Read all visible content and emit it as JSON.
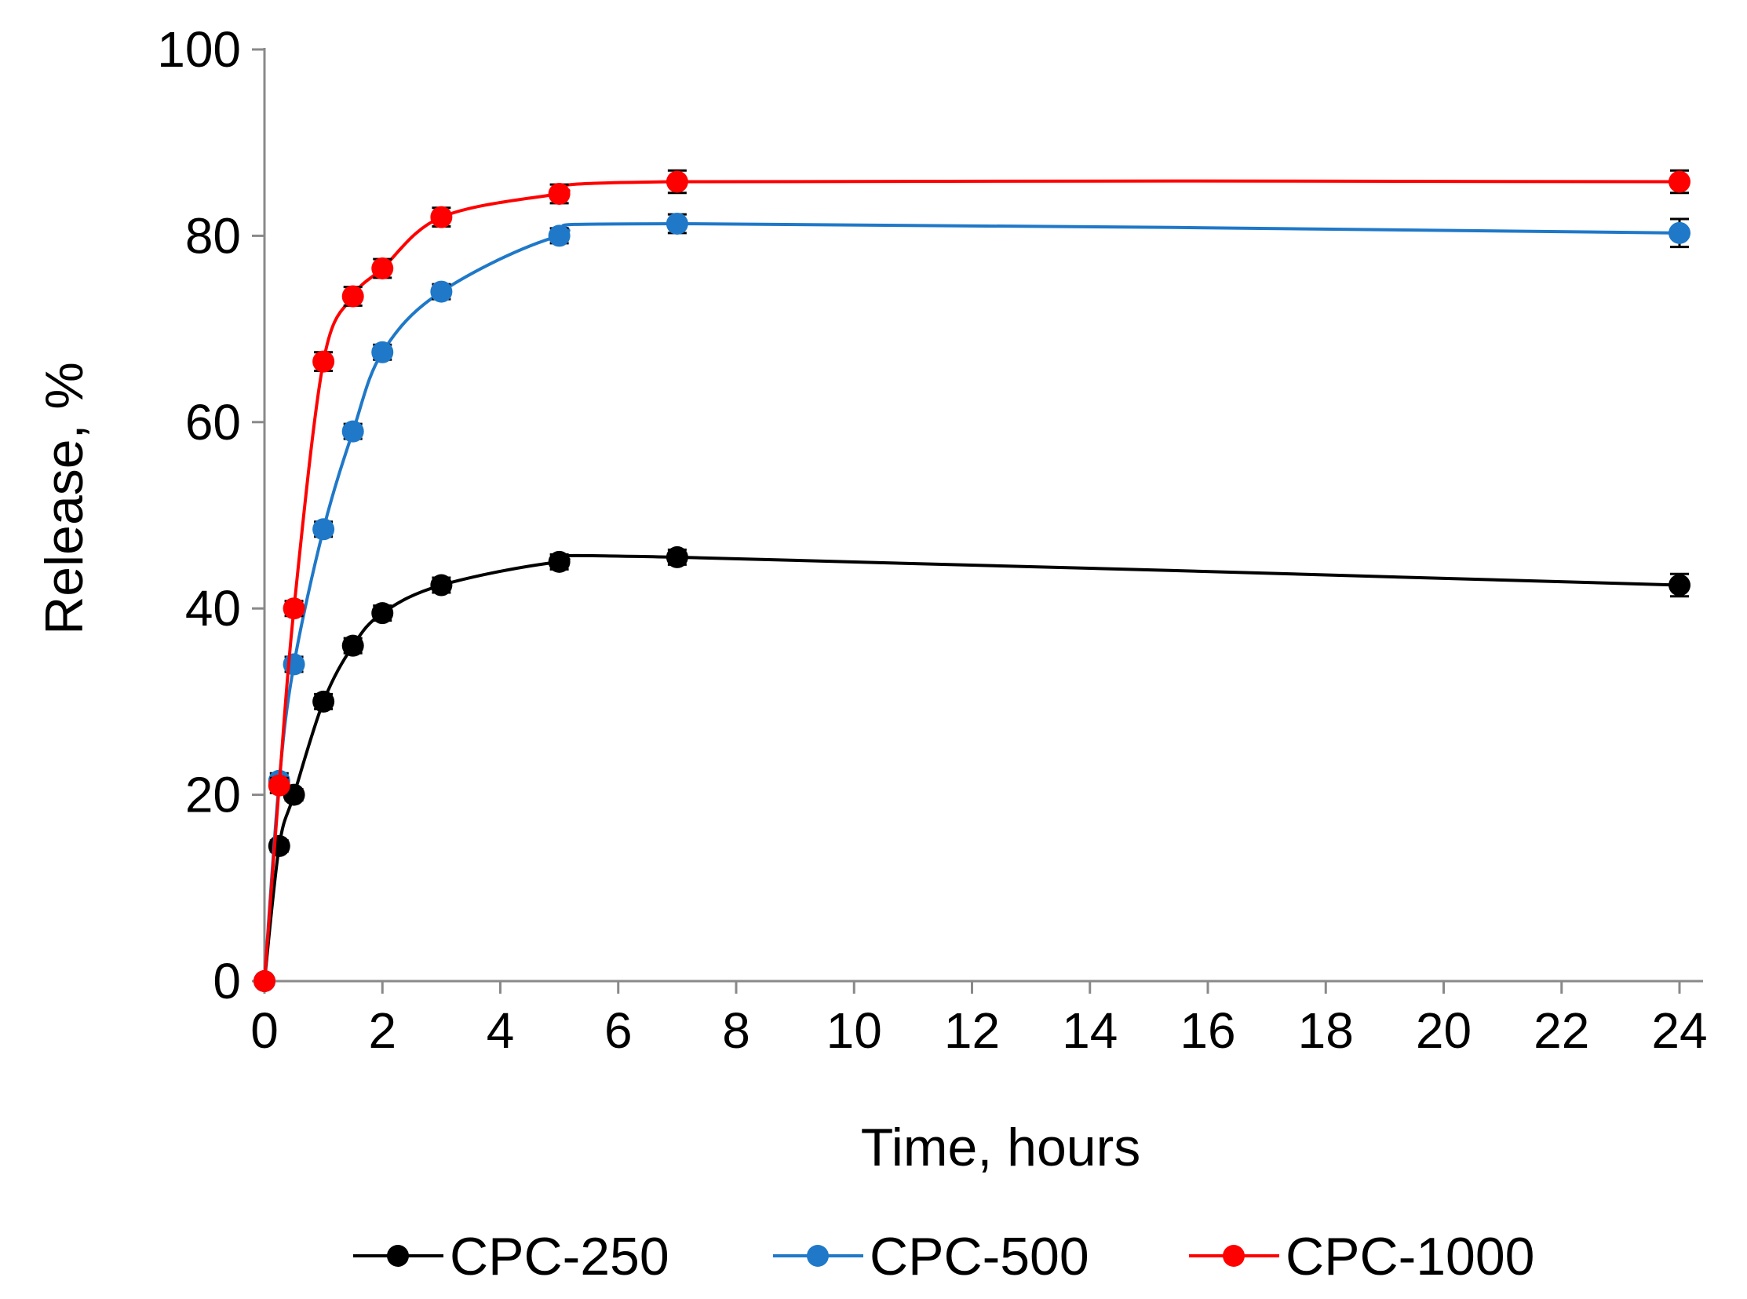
{
  "chart_data": {
    "type": "line",
    "title": "",
    "xlabel": "Time,  hours",
    "ylabel": "Release,  %",
    "xlim": [
      0,
      24
    ],
    "ylim": [
      0,
      100
    ],
    "xticks": [
      0,
      2,
      4,
      6,
      8,
      10,
      12,
      14,
      16,
      18,
      20,
      22,
      24
    ],
    "yticks": [
      0,
      20,
      40,
      60,
      80,
      100
    ],
    "grid": false,
    "legend_position": "bottom",
    "smooth": true,
    "error_bars": true,
    "series": [
      {
        "name": "CPC-250",
        "color": "#000000",
        "x": [
          0,
          0.25,
          0.5,
          1,
          1.5,
          2,
          3,
          5,
          7,
          24
        ],
        "y": [
          0,
          14.5,
          20,
          30,
          36,
          39.5,
          42.5,
          45,
          45.5,
          42.5
        ],
        "err": [
          0,
          0.6,
          0.6,
          0.8,
          0.8,
          0.8,
          0.8,
          0.8,
          0.8,
          1.2
        ]
      },
      {
        "name": "CPC-500",
        "color": "#1f78c8",
        "x": [
          0,
          0.25,
          0.5,
          1,
          1.5,
          2,
          3,
          5,
          7,
          24
        ],
        "y": [
          0,
          21.5,
          34,
          48.5,
          59,
          67.5,
          74,
          80,
          81.3,
          80.3
        ],
        "err": [
          0,
          0.8,
          0.8,
          0.8,
          0.8,
          0.8,
          0.8,
          0.8,
          1,
          1.5
        ]
      },
      {
        "name": "CPC-1000",
        "color": "#ff0000",
        "x": [
          0,
          0.25,
          0.5,
          1,
          1.5,
          2,
          3,
          5,
          7,
          24
        ],
        "y": [
          0,
          21,
          40,
          66.5,
          73.5,
          76.5,
          82,
          84.5,
          85.8,
          85.8
        ],
        "err": [
          0,
          0.8,
          0.8,
          1,
          1,
          1,
          1,
          1,
          1.2,
          1.2
        ]
      }
    ]
  }
}
